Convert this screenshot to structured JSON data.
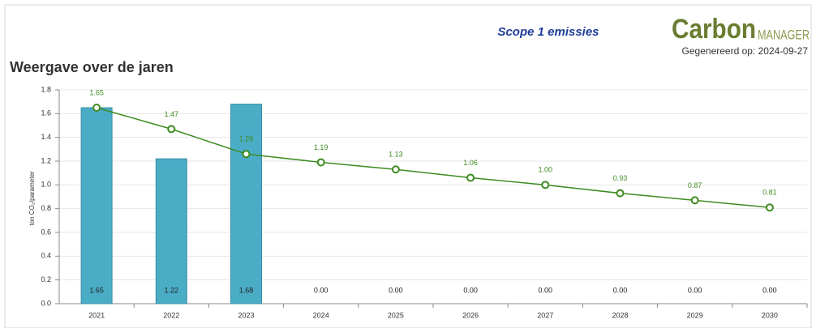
{
  "header": {
    "report_title": "Scope 1 emissies",
    "logo_main": "Carbon",
    "logo_sub": "MANAGER",
    "generated": "Gegenereerd op: 2024-09-27"
  },
  "chart_data": {
    "type": "bar",
    "title": "Weergave over de jaren",
    "y_label": "ton CO₂/parameter",
    "categories": [
      "2021",
      "2022",
      "2023",
      "2024",
      "2025",
      "2026",
      "2027",
      "2028",
      "2029",
      "2030"
    ],
    "series": [
      {
        "type": "bar",
        "color": "#4bacc6",
        "values": [
          1.65,
          1.22,
          1.68,
          0,
          0,
          0,
          0,
          0,
          0,
          0
        ],
        "value_labels": [
          "1.65",
          "1.22",
          "1.68",
          "0.00",
          "0.00",
          "0.00",
          "0.00",
          "0.00",
          "0.00",
          "0.00"
        ]
      },
      {
        "type": "line",
        "color": "#3d8b1f",
        "values": [
          1.65,
          1.47,
          1.26,
          1.19,
          1.13,
          1.06,
          1,
          0.93,
          0.87,
          0.81
        ],
        "value_labels": [
          "1.65",
          "1.47",
          "1.26",
          "1.19",
          "1.13",
          "1.06",
          "1.00",
          "0.93",
          "0.87",
          "0.81"
        ]
      }
    ],
    "ylim": [
      0,
      1.8
    ],
    "yticks": [
      {
        "value": 0,
        "label": "0.0"
      },
      0.2,
      0.4,
      0.6,
      0.8,
      {
        "value": 1,
        "label": "1.0"
      },
      1.2,
      1.4,
      1.6,
      1.8
    ],
    "grid": true
  }
}
